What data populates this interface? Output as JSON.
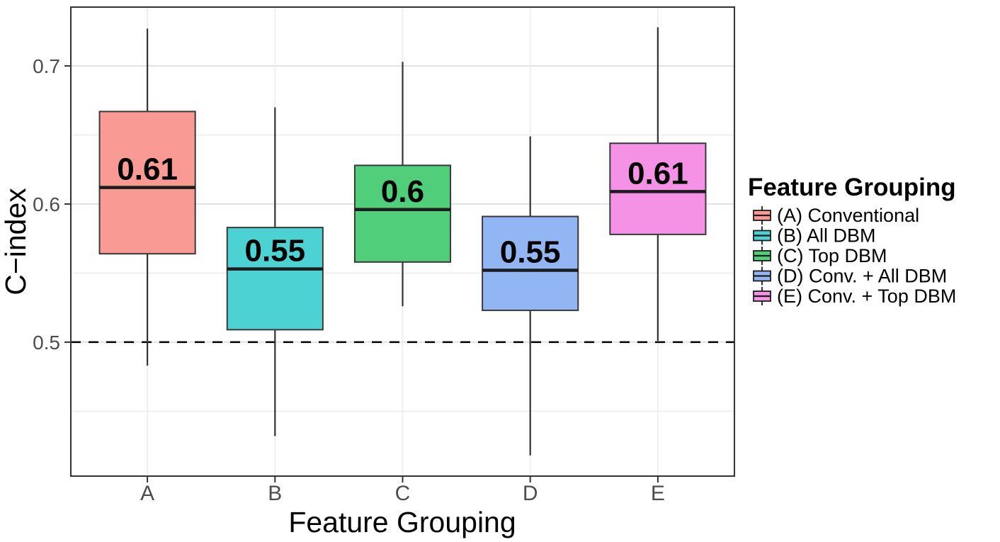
{
  "chart_data": {
    "type": "boxplot",
    "title": "",
    "xlabel": "Feature Grouping",
    "ylabel": "C−index",
    "ylim": [
      0.403,
      0.7426
    ],
    "grid": true,
    "yticks": [
      {
        "value": 0.5,
        "label": "0.5"
      },
      {
        "value": 0.6,
        "label": "0.6"
      },
      {
        "value": 0.7,
        "label": "0.7"
      }
    ],
    "major_gridlines": [
      0.5,
      0.6,
      0.7
    ],
    "minor_gridlines": [
      0.45,
      0.55,
      0.65
    ],
    "reference_line": {
      "value": 0.5,
      "style": "dashed",
      "color": "#000000"
    },
    "categories": [
      "A",
      "B",
      "C",
      "D",
      "E"
    ],
    "series": [
      {
        "category": "A",
        "legend_label": "(A) Conventional",
        "fill": "#F99B94",
        "whisker_low": 0.483,
        "q1": 0.564,
        "median": 0.612,
        "q3": 0.667,
        "whisker_high": 0.727,
        "median_label": "0.61"
      },
      {
        "category": "B",
        "legend_label": "(B) All DBM",
        "fill": "#4DD2D4",
        "whisker_low": 0.432,
        "q1": 0.509,
        "median": 0.553,
        "q3": 0.583,
        "whisker_high": 0.67,
        "median_label": "0.55"
      },
      {
        "category": "C",
        "legend_label": "(C) Top DBM",
        "fill": "#50CE79",
        "whisker_low": 0.526,
        "q1": 0.558,
        "median": 0.596,
        "q3": 0.628,
        "whisker_high": 0.703,
        "median_label": "0.6"
      },
      {
        "category": "D",
        "legend_label": "(D) Conv. + All DBM",
        "fill": "#92B6F4",
        "whisker_low": 0.418,
        "q1": 0.523,
        "median": 0.552,
        "q3": 0.591,
        "whisker_high": 0.649,
        "median_label": "0.55"
      },
      {
        "category": "E",
        "legend_label": "(E) Conv. + Top DBM",
        "fill": "#F592E6",
        "whisker_low": 0.501,
        "q1": 0.578,
        "median": 0.609,
        "q3": 0.644,
        "whisker_high": 0.728,
        "median_label": "0.61"
      }
    ],
    "legend": {
      "title": "Feature Grouping",
      "position": "right"
    }
  },
  "colors": {
    "panel_border": "#333333",
    "major_gridline": "#e2e2e2",
    "minor_gridline": "#efefef",
    "whisker": "#333333",
    "box_stroke": "#3a3a3a",
    "median_stroke": "#1c1c1c",
    "tick": "#333333",
    "tick_text": "#4d4d4d",
    "reference": "#000000"
  }
}
